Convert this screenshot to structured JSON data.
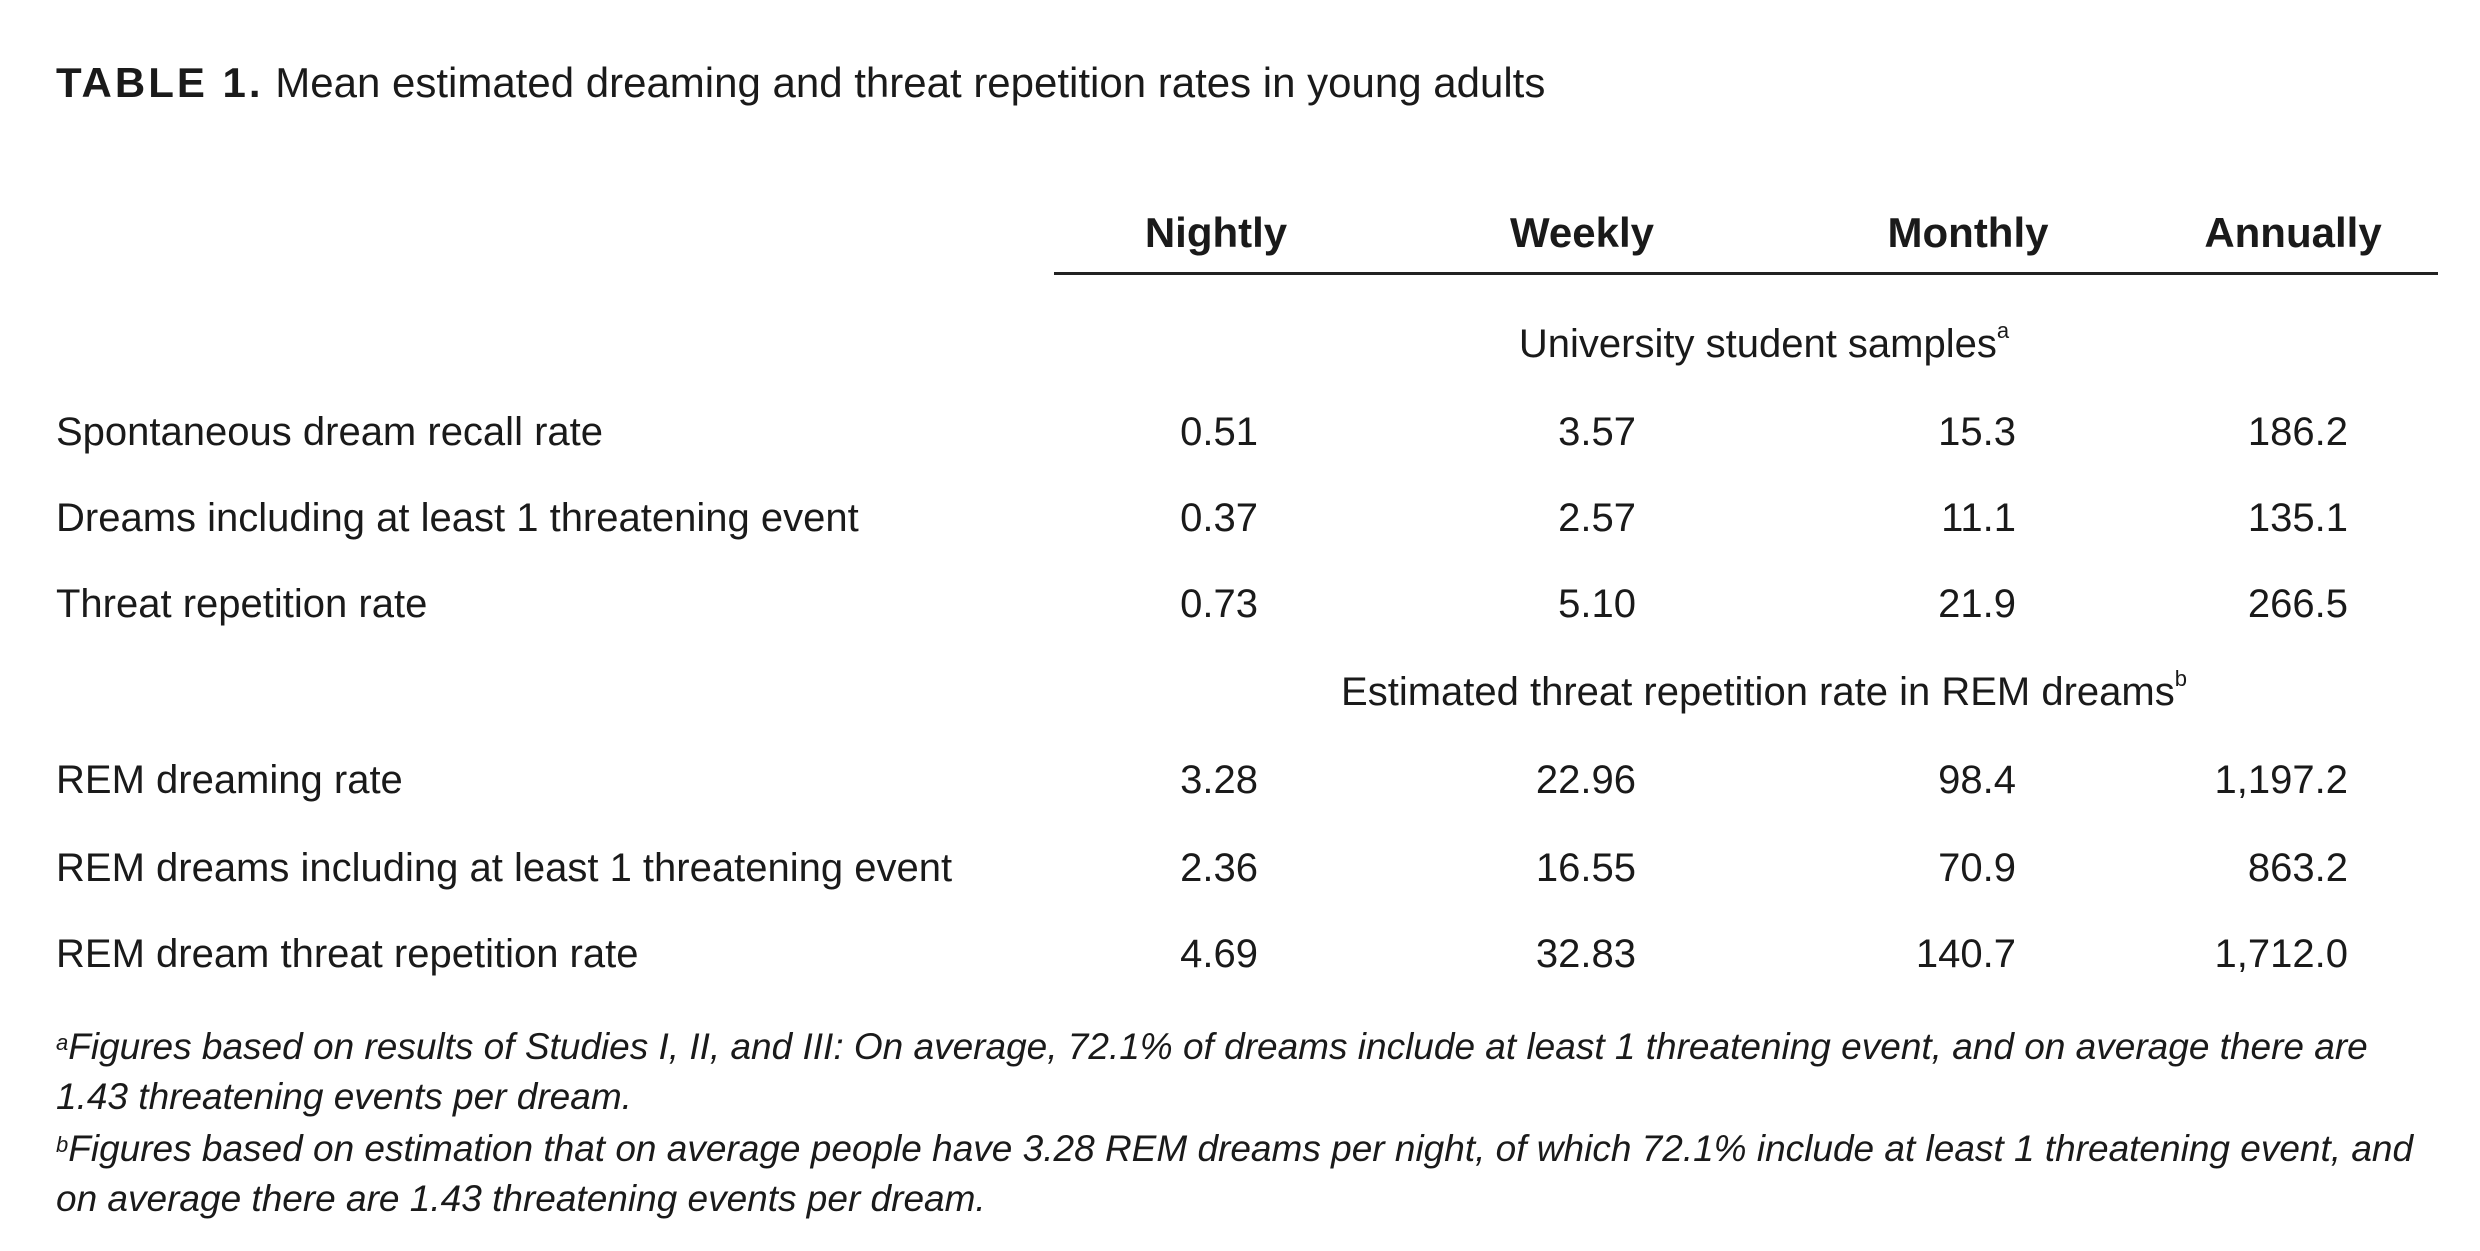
{
  "title": {
    "label": "TABLE 1.",
    "text": "Mean estimated dreaming and threat repetition rates in young adults"
  },
  "table": {
    "columns": [
      "Nightly",
      "Weekly",
      "Monthly",
      "Annually"
    ],
    "sections": [
      {
        "heading": "University student samples",
        "note_mark": "a",
        "rows": [
          {
            "label": "Spontaneous dream recall rate",
            "values": [
              "0.51",
              "3.57",
              "15.3",
              "186.2"
            ]
          },
          {
            "label": "Dreams including at least 1 threatening event",
            "values": [
              "0.37",
              "2.57",
              "11.1",
              "135.1"
            ]
          },
          {
            "label": "Threat repetition rate",
            "values": [
              "0.73",
              "5.10",
              "21.9",
              "266.5"
            ]
          }
        ]
      },
      {
        "heading": "Estimated threat repetition rate in REM dreams",
        "note_mark": "b",
        "rows": [
          {
            "label": "REM dreaming rate",
            "values": [
              "3.28",
              "22.96",
              "98.4",
              "1,197.2"
            ]
          },
          {
            "label": "REM dreams including at least 1 threatening event",
            "values": [
              "2.36",
              "16.55",
              "70.9",
              "863.2"
            ]
          },
          {
            "label": "REM dream threat repetition rate",
            "values": [
              "4.69",
              "32.83",
              "140.7",
              "1,712.0"
            ]
          }
        ]
      }
    ]
  },
  "footnotes": [
    {
      "mark": "a",
      "text": "Figures based on results of Studies I, II, and III: On average, 72.1% of dreams include at least 1 threatening event, and on average there are 1.43 threatening events per dream."
    },
    {
      "mark": "b",
      "text": "Figures based on estimation that on average people have 3.28 REM dreams per night, of which 72.1% include at least 1 threatening event, and on average there are 1.43 threatening events per dream."
    }
  ]
}
